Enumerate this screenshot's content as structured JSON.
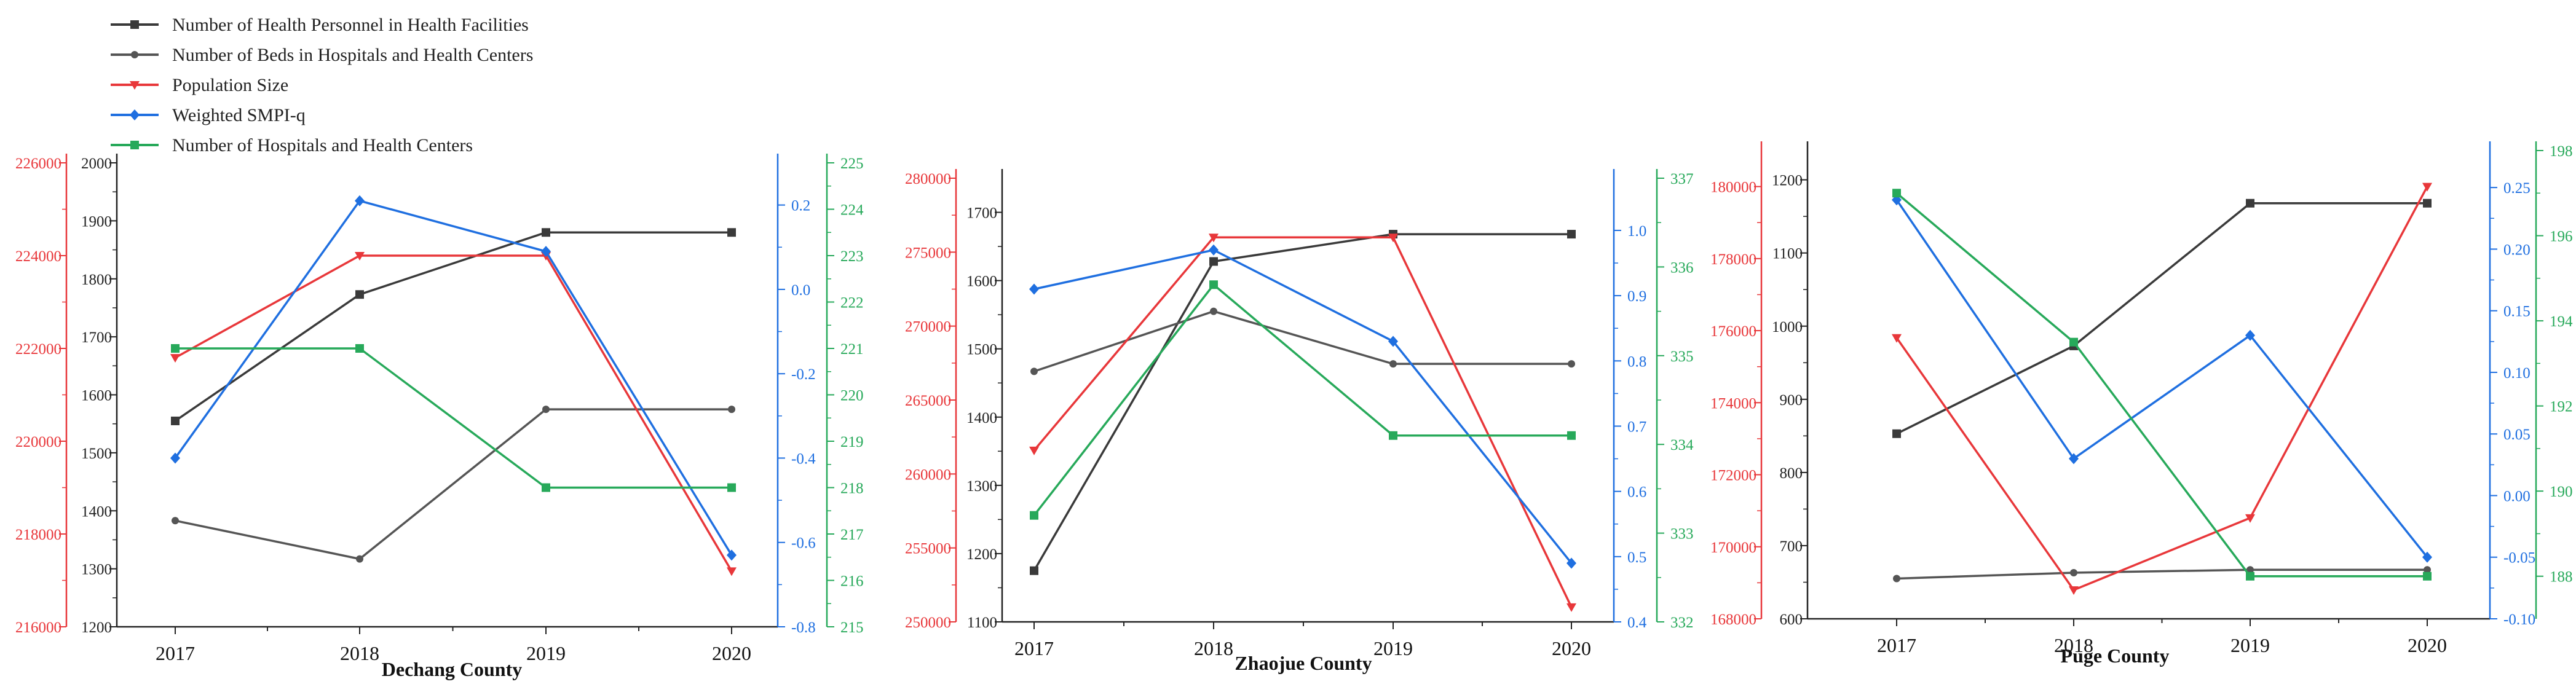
{
  "colors": {
    "personnel": "#3a3a3a",
    "beds": "#555555",
    "population": "#e8373a",
    "smpi": "#1f6fe0",
    "hospitals": "#27a95a",
    "axis_black": "#222222"
  },
  "legend": [
    {
      "key": "personnel",
      "label": "Number of  Health Personnel in Health Facilities",
      "marker": "square"
    },
    {
      "key": "beds",
      "label": "Number of  Beds in Hospitals and Health Centers",
      "marker": "circle"
    },
    {
      "key": "population",
      "label": "Population Size",
      "marker": "triangle-down"
    },
    {
      "key": "smpi",
      "label": "Weighted SMPI-q",
      "marker": "diamond"
    },
    {
      "key": "hospitals",
      "label": "Number of Hospitals and Health Centers",
      "marker": "square"
    }
  ],
  "chart_data": [
    {
      "type": "line",
      "title": "Dechang County",
      "categories": [
        "2017",
        "2018",
        "2019",
        "2020"
      ],
      "axes": {
        "population": {
          "range": [
            216000,
            226000
          ],
          "ticks": [
            216000,
            218000,
            220000,
            222000,
            224000,
            226000
          ],
          "decimals": 0
        },
        "black": {
          "range": [
            1200,
            2000
          ],
          "ticks": [
            1200,
            1300,
            1400,
            1500,
            1600,
            1700,
            1800,
            1900,
            2000
          ],
          "decimals": 0
        },
        "smpi": {
          "range": [
            -0.8,
            0.3
          ],
          "ticks": [
            -0.8,
            -0.6,
            -0.4,
            -0.2,
            0.0,
            0.2
          ],
          "decimals": 1
        },
        "hospitals": {
          "range": [
            215,
            225
          ],
          "ticks": [
            215,
            216,
            217,
            218,
            219,
            220,
            221,
            222,
            223,
            224,
            225
          ],
          "decimals": 0
        }
      },
      "series": [
        {
          "key": "personnel",
          "axis": "black",
          "values": [
            1555,
            1773,
            1880,
            1880
          ]
        },
        {
          "key": "beds",
          "axis": "black",
          "values": [
            1383,
            1317,
            1575,
            1575
          ]
        },
        {
          "key": "population",
          "axis": "population",
          "values": [
            221800,
            224000,
            224000,
            217200
          ]
        },
        {
          "key": "smpi",
          "axis": "smpi",
          "values": [
            -0.4,
            0.21,
            0.09,
            -0.63
          ]
        },
        {
          "key": "hospitals",
          "axis": "hospitals",
          "values": [
            221,
            221,
            218,
            218
          ]
        }
      ]
    },
    {
      "type": "line",
      "title": "Zhaojue County",
      "categories": [
        "2017",
        "2018",
        "2019",
        "2020"
      ],
      "axes": {
        "population": {
          "range": [
            250000,
            280000
          ],
          "ticks": [
            250000,
            255000,
            260000,
            265000,
            270000,
            275000,
            280000
          ],
          "decimals": 0
        },
        "black": {
          "range": [
            1100,
            1750
          ],
          "ticks": [
            1100,
            1200,
            1300,
            1400,
            1500,
            1600,
            1700
          ],
          "decimals": 0
        },
        "smpi": {
          "range": [
            0.4,
            1.08
          ],
          "ticks": [
            0.4,
            0.5,
            0.6,
            0.7,
            0.8,
            0.9,
            1.0
          ],
          "decimals": 1
        },
        "hospitals": {
          "range": [
            332,
            337
          ],
          "ticks": [
            332,
            333,
            334,
            335,
            336,
            337
          ],
          "decimals": 0
        }
      },
      "series": [
        {
          "key": "personnel",
          "axis": "black",
          "values": [
            1175,
            1628,
            1668,
            1668
          ]
        },
        {
          "key": "beds",
          "axis": "black",
          "values": [
            1467,
            1555,
            1478,
            1478
          ]
        },
        {
          "key": "population",
          "axis": "population",
          "values": [
            261600,
            276000,
            276000,
            251000
          ]
        },
        {
          "key": "smpi",
          "axis": "smpi",
          "values": [
            0.91,
            0.97,
            0.83,
            0.49
          ]
        },
        {
          "key": "hospitals",
          "axis": "hospitals",
          "values": [
            333.2,
            335.8,
            334.1,
            334.1
          ]
        }
      ]
    },
    {
      "type": "line",
      "title": "Puge County",
      "categories": [
        "2017",
        "2018",
        "2019",
        "2020"
      ],
      "axes": {
        "population": {
          "range": [
            168000,
            181000
          ],
          "ticks": [
            168000,
            170000,
            172000,
            174000,
            176000,
            178000,
            180000
          ],
          "decimals": 0
        },
        "black": {
          "range": [
            600,
            1240
          ],
          "ticks": [
            600,
            700,
            800,
            900,
            1000,
            1100,
            1200
          ],
          "decimals": 0
        },
        "smpi": {
          "range": [
            -0.1,
            0.28
          ],
          "ticks": [
            -0.1,
            -0.05,
            0.0,
            0.05,
            0.1,
            0.15,
            0.2,
            0.25
          ],
          "decimals": 2
        },
        "hospitals": {
          "range": [
            187,
            198
          ],
          "ticks": [
            188,
            190,
            192,
            194,
            196,
            198
          ],
          "decimals": 0
        }
      },
      "series": [
        {
          "key": "personnel",
          "axis": "black",
          "values": [
            853,
            973,
            1168,
            1168
          ]
        },
        {
          "key": "beds",
          "axis": "black",
          "values": [
            655,
            663,
            667,
            667
          ]
        },
        {
          "key": "population",
          "axis": "population",
          "values": [
            175800,
            168800,
            170800,
            180000
          ]
        },
        {
          "key": "smpi",
          "axis": "smpi",
          "values": [
            0.24,
            0.03,
            0.13,
            -0.05
          ]
        },
        {
          "key": "hospitals",
          "axis": "hospitals",
          "values": [
            197,
            193.5,
            188,
            188
          ]
        }
      ]
    }
  ]
}
